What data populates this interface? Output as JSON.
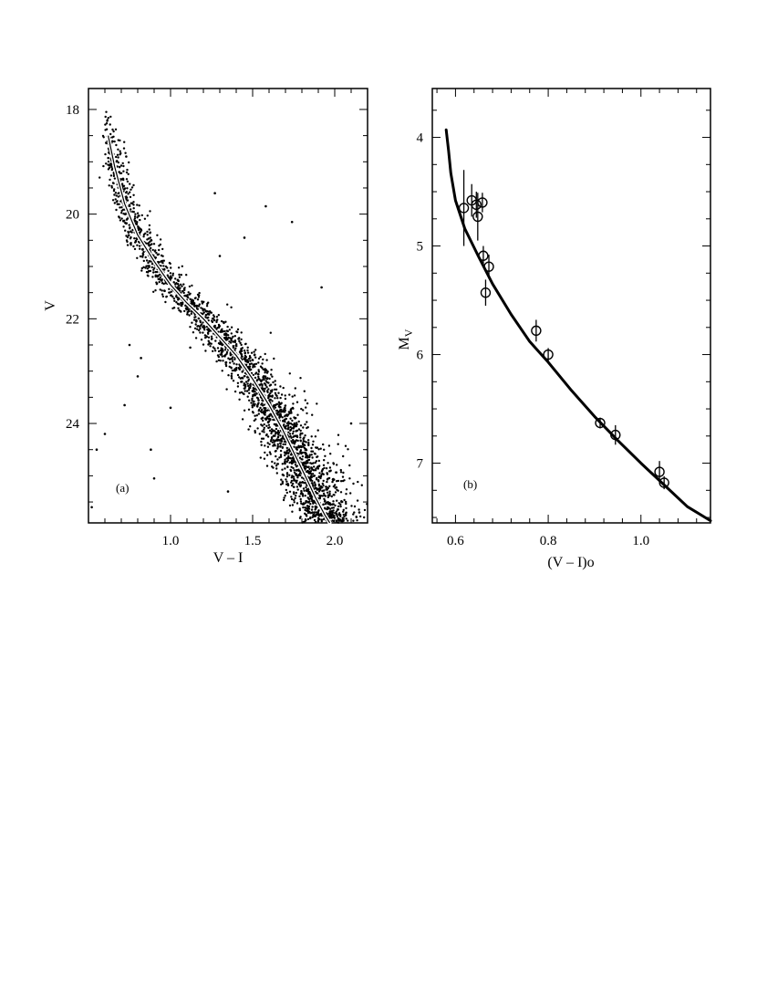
{
  "chart_data": [
    {
      "type": "scatter",
      "panel_label": "(a)",
      "xlabel": "V – I",
      "ylabel": "V",
      "xlim": [
        0.5,
        2.2
      ],
      "ylim": [
        17.6,
        25.9
      ],
      "y_inverted": true,
      "xticks": [
        1.0,
        1.5,
        2.0
      ],
      "xtick_labels": [
        "1.0",
        "1.5",
        "2.0"
      ],
      "yticks": [
        18,
        20,
        22,
        24
      ],
      "ytick_labels": [
        "18",
        "20",
        "22",
        "24"
      ],
      "grid": false,
      "legend": "none",
      "fiducial_line": {
        "x": [
          0.62,
          0.66,
          0.72,
          0.8,
          0.9,
          1.0,
          1.1,
          1.2,
          1.3,
          1.4,
          1.5,
          1.6,
          1.68,
          1.75,
          1.82,
          1.88,
          1.94,
          1.97
        ],
        "y": [
          18.5,
          19.1,
          19.8,
          20.4,
          20.9,
          21.35,
          21.7,
          22.0,
          22.35,
          22.7,
          23.15,
          23.65,
          24.1,
          24.55,
          25.0,
          25.4,
          25.75,
          25.9
        ]
      },
      "main_sequence_scatter": {
        "point_count": 2600,
        "color_spread_at_bright_end": 0.02,
        "color_spread_at_faint_end": 0.09
      },
      "field_stars": {
        "x": [
          0.6,
          0.72,
          0.82,
          0.88,
          1.27,
          1.45,
          1.0,
          0.52,
          0.55,
          0.75,
          0.9,
          2.1,
          1.92,
          0.8,
          0.73,
          2.15,
          1.35,
          1.58,
          1.74,
          1.3,
          1.12
        ],
        "y": [
          24.2,
          23.65,
          22.75,
          24.5,
          19.6,
          20.45,
          23.7,
          25.6,
          24.5,
          22.5,
          25.05,
          24.0,
          21.4,
          23.1,
          18.9,
          25.7,
          25.3,
          19.85,
          20.15,
          20.8,
          22.55
        ]
      }
    },
    {
      "type": "scatter",
      "panel_label": "(b)",
      "xlabel": "(V – I)o",
      "ylabel": "M",
      "ylabel_subscript": "V",
      "xlim": [
        0.55,
        1.15
      ],
      "ylim": [
        3.55,
        7.55
      ],
      "y_inverted": true,
      "xticks": [
        0.6,
        0.8,
        1.0
      ],
      "xtick_labels": [
        "0.6",
        "0.8",
        "1.0"
      ],
      "yticks": [
        4,
        5,
        6,
        7
      ],
      "ytick_labels": [
        "4",
        "5",
        "6",
        "7"
      ],
      "grid": false,
      "legend": "none",
      "fit_line": {
        "x": [
          0.58,
          0.585,
          0.59,
          0.6,
          0.62,
          0.65,
          0.68,
          0.72,
          0.76,
          0.8,
          0.85,
          0.9,
          0.95,
          1.0,
          1.05,
          1.1,
          1.15
        ],
        "y": [
          3.93,
          4.12,
          4.33,
          4.58,
          4.84,
          5.1,
          5.35,
          5.63,
          5.88,
          6.07,
          6.33,
          6.57,
          6.79,
          7.0,
          7.2,
          7.4,
          7.53
        ]
      },
      "points": [
        {
          "x": 0.618,
          "y": 4.65,
          "yerr": 0.35
        },
        {
          "x": 0.635,
          "y": 4.58,
          "yerr": 0.15
        },
        {
          "x": 0.645,
          "y": 4.62,
          "yerr": 0.12
        },
        {
          "x": 0.648,
          "y": 4.73,
          "yerr": 0.22
        },
        {
          "x": 0.658,
          "y": 4.6,
          "yerr": 0.09
        },
        {
          "x": 0.66,
          "y": 5.09,
          "yerr": 0.09
        },
        {
          "x": 0.665,
          "y": 5.43,
          "yerr": 0.12
        },
        {
          "x": 0.672,
          "y": 5.19,
          "yerr": 0.11
        },
        {
          "x": 0.774,
          "y": 5.78,
          "yerr": 0.1
        },
        {
          "x": 0.8,
          "y": 6.0,
          "yerr": 0.06
        },
        {
          "x": 0.912,
          "y": 6.63,
          "yerr": 0.05
        },
        {
          "x": 0.945,
          "y": 6.74,
          "yerr": 0.09
        },
        {
          "x": 1.04,
          "y": 7.08,
          "yerr": 0.1
        },
        {
          "x": 1.05,
          "y": 7.18,
          "yerr": 0.06
        }
      ]
    }
  ]
}
